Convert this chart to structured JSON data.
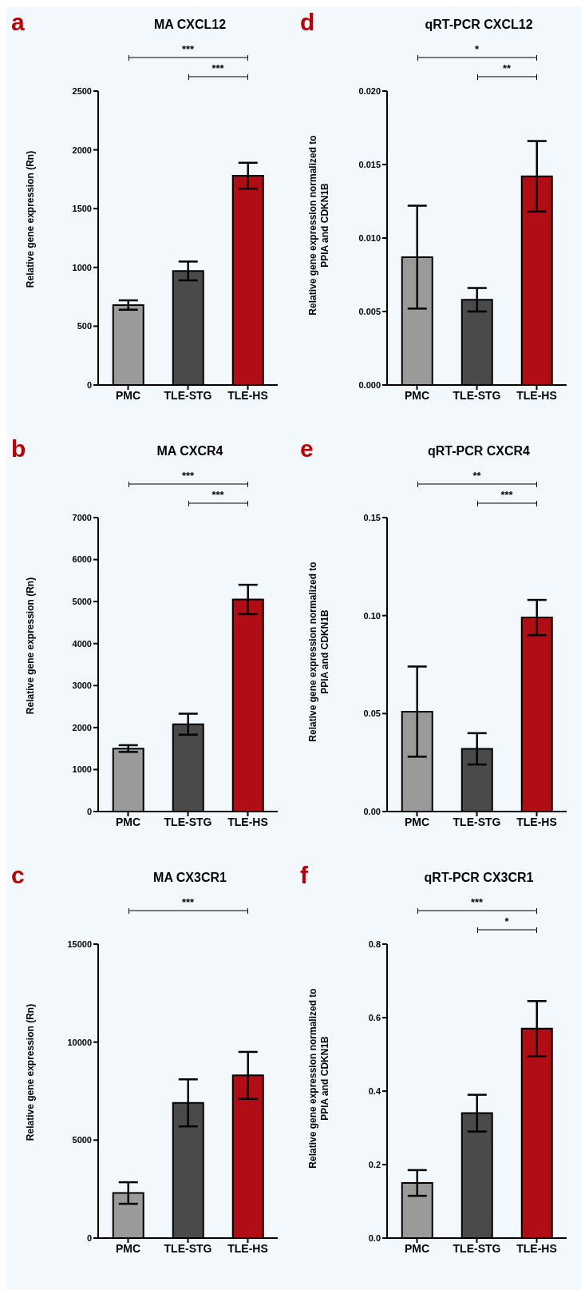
{
  "chart_data": [
    {
      "type": "bar",
      "title": "MA CXCL12",
      "ylabel": "Relative gene expression (Rn)",
      "categories": [
        "PMC",
        "TLE-STG",
        "TLE-HS"
      ],
      "values": [
        680,
        970,
        1780
      ],
      "errors": [
        40,
        80,
        110
      ],
      "colors": [
        "#9a9a9a",
        "#4a4a4a",
        "#b00d14"
      ],
      "ylim": [
        0,
        2500
      ],
      "yticks": [
        0,
        500,
        1000,
        1500,
        2000,
        2500
      ],
      "annotations": [
        "a",
        "***",
        "***"
      ]
    },
    {
      "type": "bar",
      "title": "MA CXCR4",
      "ylabel": "Relative gene expression (Rn)",
      "categories": [
        "PMC",
        "TLE-STG",
        "TLE-HS"
      ],
      "values": [
        1500,
        2080,
        5050
      ],
      "errors": [
        80,
        250,
        350
      ],
      "colors": [
        "#9a9a9a",
        "#4a4a4a",
        "#b00d14"
      ],
      "ylim": [
        0,
        7000
      ],
      "yticks": [
        0,
        1000,
        2000,
        3000,
        4000,
        5000,
        6000,
        7000
      ],
      "annotations": [
        "b",
        "***",
        "***"
      ]
    },
    {
      "type": "bar",
      "title": "MA CX3CR1",
      "ylabel": "Relative gene expression (Rn)",
      "categories": [
        "PMC",
        "TLE-STG",
        "TLE-HS"
      ],
      "values": [
        2300,
        6900,
        8300
      ],
      "errors": [
        550,
        1200,
        1200
      ],
      "colors": [
        "#9a9a9a",
        "#4a4a4a",
        "#b00d14"
      ],
      "ylim": [
        0,
        15000
      ],
      "yticks": [
        0,
        5000,
        10000,
        15000
      ],
      "annotations": [
        "c",
        "***"
      ]
    },
    {
      "type": "bar",
      "title": "qRT-PCR CXCL12",
      "ylabel": "Relative gene expression normalized to PPIA and CDKN1B",
      "categories": [
        "PMC",
        "TLE-STG",
        "TLE-HS"
      ],
      "values": [
        0.0087,
        0.0058,
        0.0142
      ],
      "errors": [
        0.0035,
        0.0008,
        0.0024
      ],
      "colors": [
        "#9a9a9a",
        "#4a4a4a",
        "#b00d14"
      ],
      "ylim": [
        0,
        0.02
      ],
      "yticks": [
        {
          "value": 0,
          "label": "0.000"
        },
        {
          "value": 0.005,
          "label": "0.005"
        },
        {
          "value": 0.01,
          "label": "0.010"
        },
        {
          "value": 0.015,
          "label": "0.015"
        },
        {
          "value": 0.02,
          "label": "0.020"
        }
      ],
      "annotations": [
        "d",
        "*",
        "**"
      ]
    },
    {
      "type": "bar",
      "title": "qRT-PCR CXCR4",
      "ylabel": "Relative gene expression normalized to PPIA and CDKN1B",
      "categories": [
        "PMC",
        "TLE-STG",
        "TLE-HS"
      ],
      "values": [
        0.051,
        0.032,
        0.099
      ],
      "errors": [
        0.023,
        0.008,
        0.009
      ],
      "colors": [
        "#9a9a9a",
        "#4a4a4a",
        "#b00d14"
      ],
      "ylim": [
        0,
        0.15
      ],
      "yticks": [
        {
          "value": 0,
          "label": "0.00"
        },
        {
          "value": 0.05,
          "label": "0.05"
        },
        {
          "value": 0.1,
          "label": "0.10"
        },
        {
          "value": 0.15,
          "label": "0.15"
        }
      ],
      "annotations": [
        "e",
        "**",
        "***"
      ]
    },
    {
      "type": "bar",
      "title": "qRT-PCR CX3CR1",
      "ylabel": "Relative gene expression normalized to PPIA and CDKN1B",
      "categories": [
        "PMC",
        "TLE-STG",
        "TLE-HS"
      ],
      "values": [
        0.15,
        0.34,
        0.57
      ],
      "errors": [
        0.035,
        0.05,
        0.075
      ],
      "colors": [
        "#9a9a9a",
        "#4a4a4a",
        "#b00d14"
      ],
      "ylim": [
        0,
        0.8
      ],
      "yticks": [
        {
          "value": 0,
          "label": "0.0"
        },
        {
          "value": 0.2,
          "label": "0.2"
        },
        {
          "value": 0.4,
          "label": "0.4"
        },
        {
          "value": 0.6,
          "label": "0.6"
        },
        {
          "value": 0.8,
          "label": "0.8"
        }
      ],
      "annotations": [
        "f",
        "***",
        "*"
      ]
    }
  ]
}
